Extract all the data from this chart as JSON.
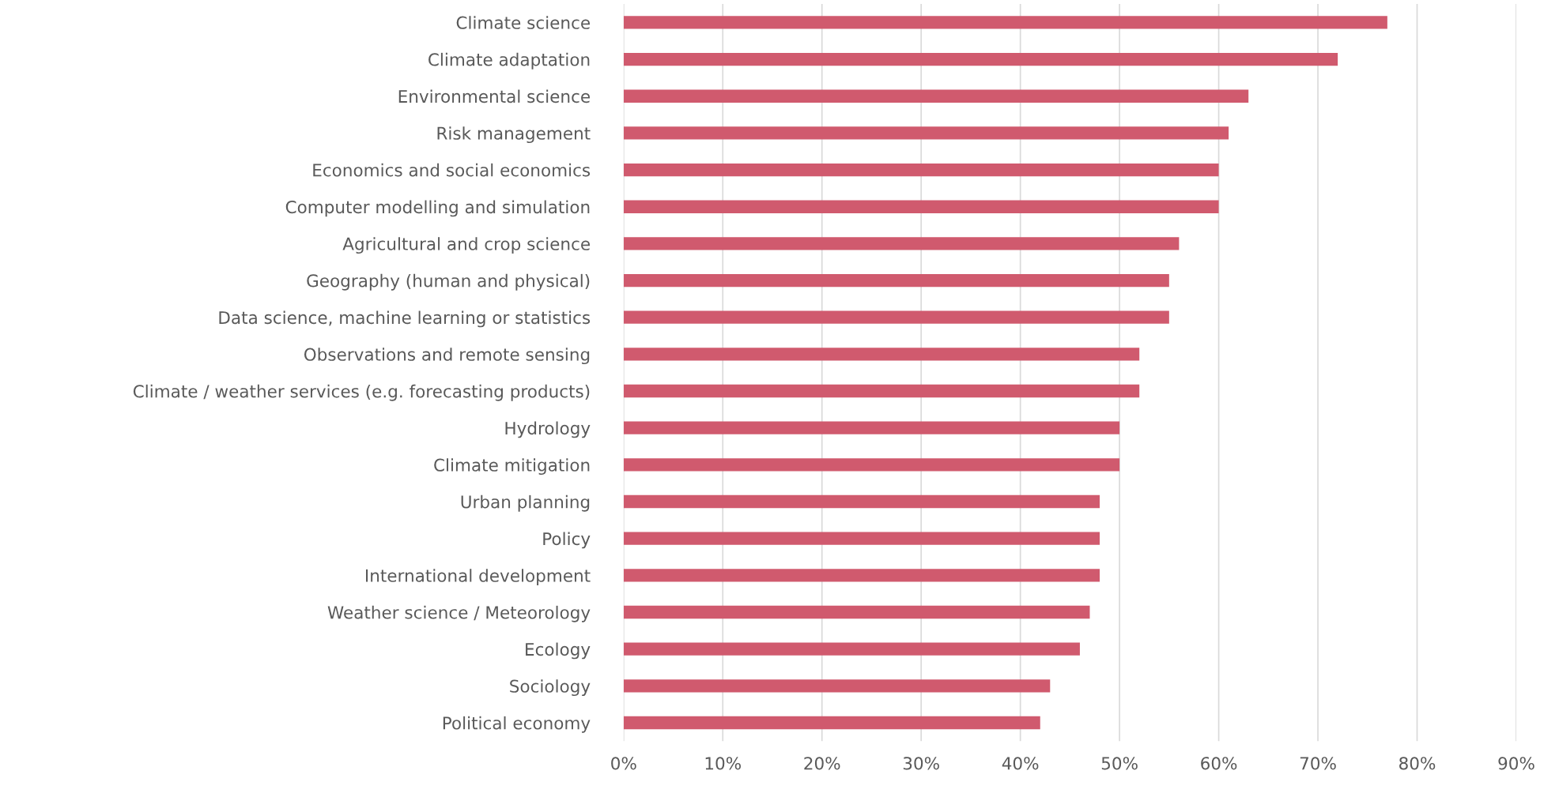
{
  "chart_data": {
    "type": "bar",
    "orientation": "horizontal",
    "categories": [
      "Climate science",
      "Climate adaptation",
      "Environmental science",
      "Risk management",
      "Economics and social economics",
      "Computer modelling and simulation",
      "Agricultural and crop science",
      "Geography (human and physical)",
      "Data science, machine learning or statistics",
      "Observations and remote sensing",
      "Climate / weather services (e.g. forecasting products)",
      "Hydrology",
      "Climate mitigation",
      "Urban planning",
      "Policy",
      "International development",
      "Weather science / Meteorology",
      "Ecology",
      "Sociology",
      "Political economy"
    ],
    "values": [
      77,
      72,
      63,
      61,
      60,
      60,
      56,
      55,
      55,
      52,
      52,
      50,
      50,
      48,
      48,
      48,
      47,
      46,
      43,
      42
    ],
    "color": "#d05a6e",
    "xlim": [
      0,
      90
    ],
    "xticks": [
      {
        "value": 0,
        "label": "0%"
      },
      {
        "value": 10,
        "label": "10%"
      },
      {
        "value": 20,
        "label": "20%"
      },
      {
        "value": 30,
        "label": "30%"
      },
      {
        "value": 40,
        "label": "40%"
      },
      {
        "value": 50,
        "label": "50%"
      },
      {
        "value": 60,
        "label": "60%"
      },
      {
        "value": 70,
        "label": "70%"
      },
      {
        "value": 80,
        "label": "80%"
      },
      {
        "value": 90,
        "label": "90%"
      }
    ],
    "grid": "x"
  }
}
